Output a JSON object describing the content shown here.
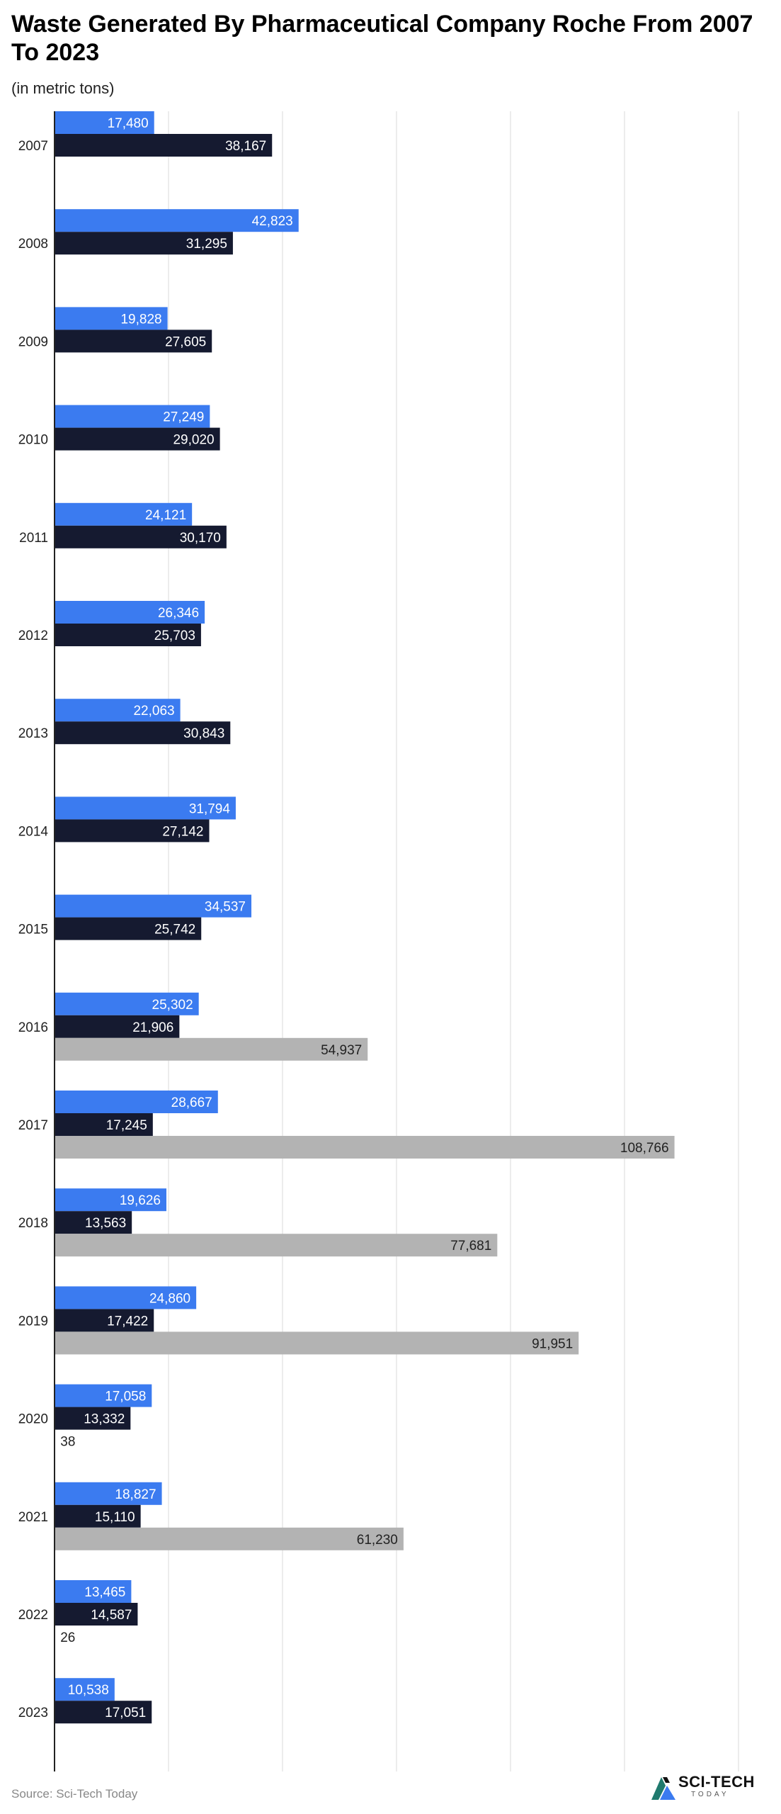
{
  "title": "Waste Generated By Pharmaceutical Company Roche From 2007 To 2023",
  "subtitle": "(in metric tons)",
  "source": "Source: Sci-Tech Today",
  "logo": {
    "name": "SCI-TECH",
    "tagline": "TODAY"
  },
  "colors": {
    "series1": "#3b7bf0",
    "series2": "#151a30",
    "series3": "#b3b3b3",
    "grid": "#e6e6e6",
    "axis": "#222222"
  },
  "chart_data": {
    "type": "bar",
    "orientation": "horizontal",
    "categories": [
      "2007",
      "2008",
      "2009",
      "2010",
      "2011",
      "2012",
      "2013",
      "2014",
      "2015",
      "2016",
      "2017",
      "2018",
      "2019",
      "2020",
      "2021",
      "2022",
      "2023"
    ],
    "series": [
      {
        "values": [
          17480,
          42823,
          19828,
          27249,
          24121,
          26346,
          22063,
          31794,
          34537,
          25302,
          28667,
          19626,
          24860,
          17058,
          18827,
          13465,
          10538
        ]
      },
      {
        "values": [
          38167,
          31295,
          27605,
          29020,
          30170,
          25703,
          30843,
          27142,
          25742,
          21906,
          17245,
          13563,
          17422,
          13332,
          15110,
          14587,
          17051
        ]
      },
      {
        "values": [
          null,
          null,
          null,
          null,
          null,
          null,
          null,
          null,
          null,
          54937,
          108766,
          77681,
          91951,
          38,
          61230,
          26,
          null
        ]
      }
    ],
    "xlim": [
      0,
      120000
    ],
    "xticks": [
      0,
      20000,
      40000,
      60000,
      80000,
      100000,
      120000
    ],
    "xtick_labels": [
      "0",
      "20,000",
      "40,000",
      "60,000",
      "80,000",
      "100,000",
      "120,000"
    ],
    "grid": true,
    "legend": false
  }
}
